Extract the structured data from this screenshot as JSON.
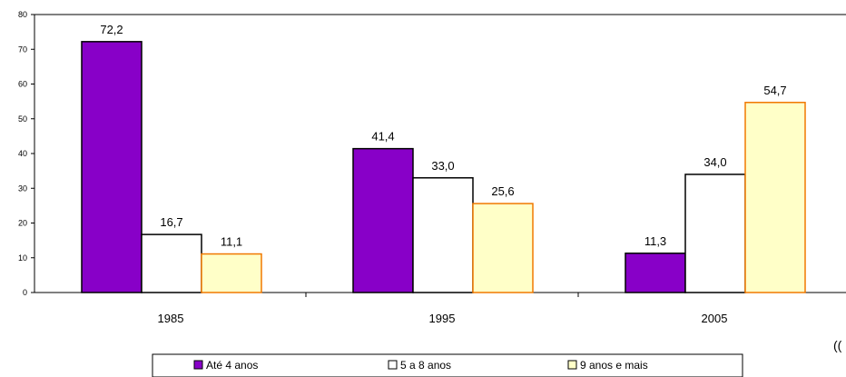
{
  "chart_data": {
    "type": "bar",
    "title": "",
    "xlabel": "",
    "ylabel": "",
    "categories": [
      "1985",
      "1995",
      "2005"
    ],
    "series": [
      {
        "name": "Até 4 anos",
        "values": [
          72.2,
          41.4,
          11.3
        ],
        "labels": [
          "72,2",
          "41,4",
          "11,3"
        ],
        "color": "#8800c8",
        "stroke": "#000000"
      },
      {
        "name": "5 a 8 anos",
        "values": [
          16.7,
          33.0,
          34.0
        ],
        "labels": [
          "16,7",
          "33,0",
          "34,0"
        ],
        "color": "#ffffff",
        "stroke": "#000000"
      },
      {
        "name": "9 anos e mais",
        "values": [
          11.1,
          25.6,
          54.7
        ],
        "labels": [
          "11,1",
          "25,6",
          "54,7"
        ],
        "color": "#ffffc8",
        "stroke": "#f07800"
      }
    ],
    "ylim": [
      0,
      80
    ],
    "yticks": [
      0,
      10,
      20,
      30,
      40,
      50,
      60,
      70,
      80
    ],
    "grid": false,
    "legend_position": "bottom"
  },
  "side_note": "(("
}
